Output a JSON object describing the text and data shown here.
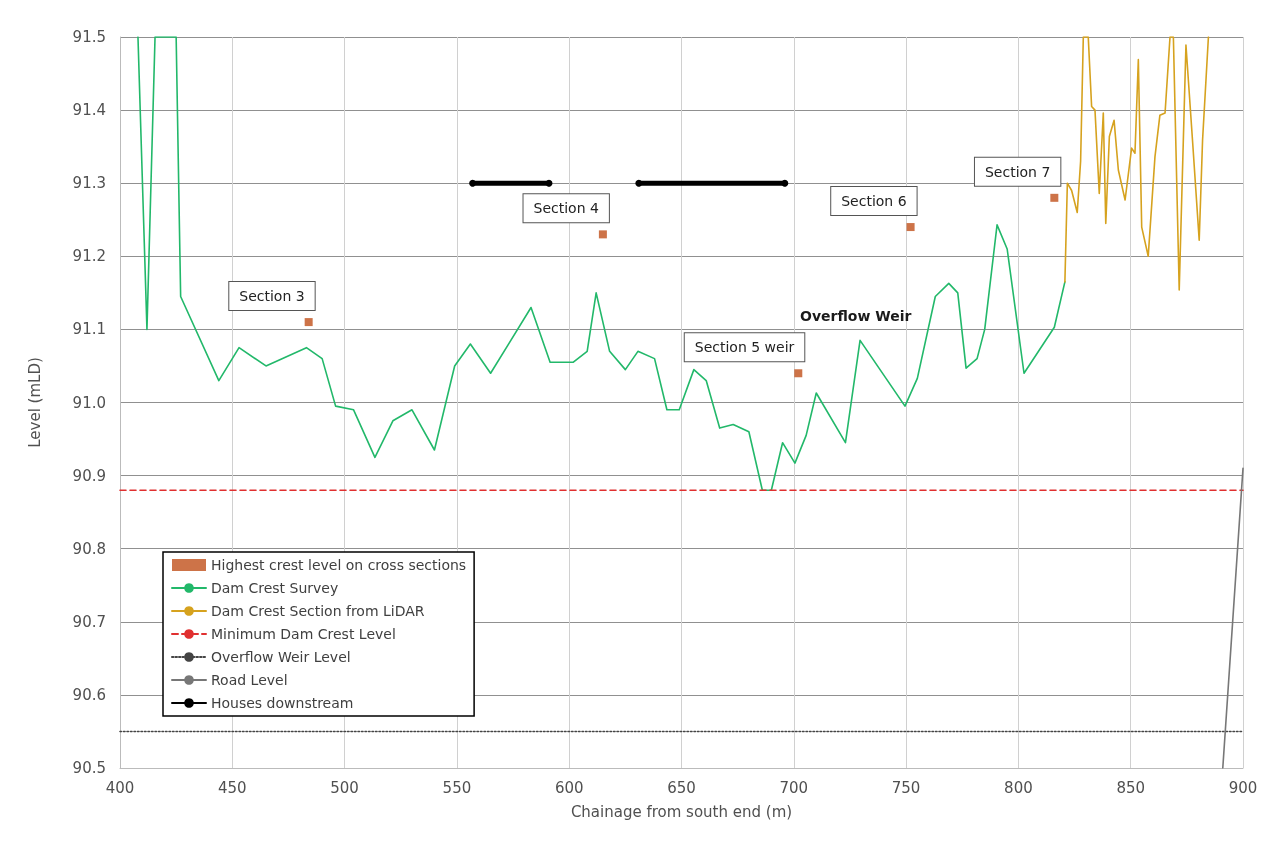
{
  "chart_data": {
    "type": "line",
    "xlabel": "Chainage from south end (m)",
    "ylabel": "Level (mLD)",
    "xlim": [
      400,
      900
    ],
    "xticks": [
      400,
      450,
      500,
      550,
      600,
      650,
      700,
      750,
      800,
      850,
      900
    ],
    "ylim": [
      90.5,
      91.5
    ],
    "yticks": [
      90.5,
      90.6,
      90.7,
      90.8,
      90.9,
      {
        "value": 91.0,
        "label": "91.0"
      },
      91.1,
      91.2,
      91.3,
      91.4,
      91.5
    ],
    "grid": true,
    "legend": "bottom left",
    "series": [
      {
        "name": "Highest crest level on cross sections",
        "type": "scatter",
        "marker": "square",
        "color": "#c0501a",
        "x": [
          484,
          615,
          702,
          752,
          816
        ],
        "values": [
          91.11,
          91.23,
          91.04,
          91.24,
          91.28
        ]
      },
      {
        "name": "Dam Crest Survey",
        "marker": "none",
        "color": "#22b86a",
        "x": [
          408,
          412,
          415.6,
          425,
          427,
          444,
          453,
          465,
          483,
          490,
          496,
          504,
          513.5,
          521.5,
          530,
          540,
          549,
          556,
          565,
          583,
          591.5,
          601.7,
          608,
          612,
          618,
          625,
          630.6,
          638,
          643.5,
          649,
          655.5,
          661,
          667,
          673,
          680,
          686,
          690,
          695,
          700.5,
          705.5,
          710,
          723,
          729.5,
          749.5,
          755,
          763,
          769,
          773,
          776.7,
          781.6,
          785,
          790.5,
          795,
          802.5,
          816,
          820.7
        ],
        "values": [
          91.5,
          91.1,
          91.5,
          91.5,
          91.145,
          91.03,
          91.075,
          91.05,
          91.075,
          91.06,
          90.995,
          90.99,
          90.925,
          90.975,
          90.99,
          90.935,
          91.05,
          91.08,
          91.04,
          91.13,
          91.055,
          91.055,
          91.07,
          91.15,
          91.07,
          91.045,
          91.07,
          91.06,
          90.99,
          90.99,
          91.045,
          91.03,
          90.965,
          90.97,
          90.96,
          90.88,
          90.88,
          90.945,
          90.917,
          90.955,
          91.013,
          90.945,
          91.085,
          90.995,
          91.033,
          91.145,
          91.163,
          91.15,
          91.047,
          91.06,
          91.1,
          91.243,
          91.21,
          91.04,
          91.103,
          91.165
        ]
      },
      {
        "name": "Dam Crest Section from LiDAR",
        "marker": "none",
        "color": "#d6a21e",
        "x": [
          820.7,
          821.8,
          823.7,
          826.2,
          827.7,
          828.9,
          831.1,
          832.6,
          834.1,
          836,
          837.8,
          838.9,
          840.5,
          842.6,
          844.5,
          847.5,
          850.4,
          851.9,
          853.4,
          854.9,
          857.8,
          860.8,
          863,
          865.3,
          867.5,
          869,
          871.6,
          874.6,
          877.6,
          880.5,
          882,
          884.6
        ],
        "values": [
          91.165,
          91.3,
          91.29,
          91.26,
          91.33,
          91.5,
          91.5,
          91.405,
          91.4,
          91.286,
          91.396,
          91.245,
          91.364,
          91.386,
          91.318,
          91.277,
          91.348,
          91.341,
          91.469,
          91.24,
          91.2,
          91.336,
          91.393,
          91.396,
          91.5,
          91.5,
          91.154,
          91.489,
          91.355,
          91.222,
          91.359,
          91.5
        ]
      },
      {
        "name": "Minimum Dam Crest Level",
        "marker": "none",
        "line_style": "dashed",
        "color": "#e03030",
        "x": [
          400,
          900
        ],
        "values": [
          90.88,
          90.88
        ]
      },
      {
        "name": "Overflow Weir Level",
        "marker": "none",
        "line_style": "dotted",
        "color": "#444444",
        "x": [
          400,
          900
        ],
        "values": [
          90.55,
          90.55
        ]
      },
      {
        "name": "Road Level",
        "marker": "none",
        "color": "#777777",
        "x": [
          891,
          900
        ],
        "values": [
          90.5,
          90.91
        ]
      },
      {
        "name": "Houses downstream",
        "marker": "circle",
        "color": "#000000",
        "x": [
          557,
          591,
          611,
          631,
          696
        ],
        "values": [
          91.3,
          91.3,
          null,
          91.3,
          91.3
        ]
      }
    ],
    "annotations": [
      {
        "text": "Section 3",
        "x": 484,
        "y": 91.11
      },
      {
        "text": "Section 4",
        "x": 615,
        "y": 91.23
      },
      {
        "text": "Section 5 weir",
        "x": 702,
        "y": 91.04
      },
      {
        "text": "Section 6",
        "x": 752,
        "y": 91.24
      },
      {
        "text": "Section 7",
        "x": 816,
        "y": 91.28
      },
      "Overflow Weir"
    ]
  }
}
